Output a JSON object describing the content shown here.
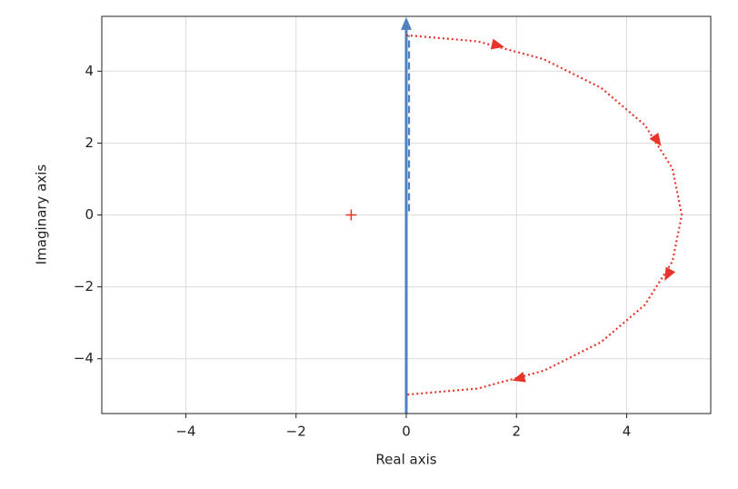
{
  "chart_data": {
    "type": "nyquist",
    "xlabel": "Real axis",
    "ylabel": "Imaginary axis",
    "xlim": [
      -5.525,
      5.525
    ],
    "ylim": [
      -5.525,
      5.525
    ],
    "xticks": [
      {
        "value": -4,
        "label": "−4"
      },
      {
        "value": -2,
        "label": "−2"
      },
      0,
      2,
      4
    ],
    "yticks": [
      {
        "value": -4,
        "label": "−4"
      },
      {
        "value": -2,
        "label": "−2"
      },
      0,
      2,
      4
    ],
    "grid": true,
    "series": [
      {
        "color": "#5181bf",
        "style": "solid",
        "arrow_end": true,
        "x": [
          0,
          0
        ],
        "values": [
          -5.525,
          5.3
        ]
      },
      {
        "color": "#5181bf",
        "style": "dashed",
        "x": [
          0.05,
          0.05
        ],
        "values": [
          0.1,
          5
        ]
      },
      {
        "color": "#e8352b",
        "style": "dotted",
        "x": [
          0,
          1.294,
          2.5,
          3.536,
          4.33,
          4.83,
          5,
          4.83,
          4.33,
          3.536,
          2.5,
          1.294,
          0
        ],
        "values": [
          5,
          4.83,
          4.33,
          3.536,
          2.5,
          1.294,
          0,
          -1.294,
          -2.5,
          -3.536,
          -4.33,
          -4.83,
          -5
        ]
      },
      {
        "color": "#e8352b",
        "style": "plus",
        "x": [
          -1
        ],
        "values": [
          0
        ]
      }
    ],
    "arrows": {
      "color": "#e8352b",
      "x": [
        1.65,
        4.55,
        4.75,
        2.05
      ],
      "y": [
        4.72,
        2.08,
        -1.65,
        -4.55
      ]
    }
  }
}
